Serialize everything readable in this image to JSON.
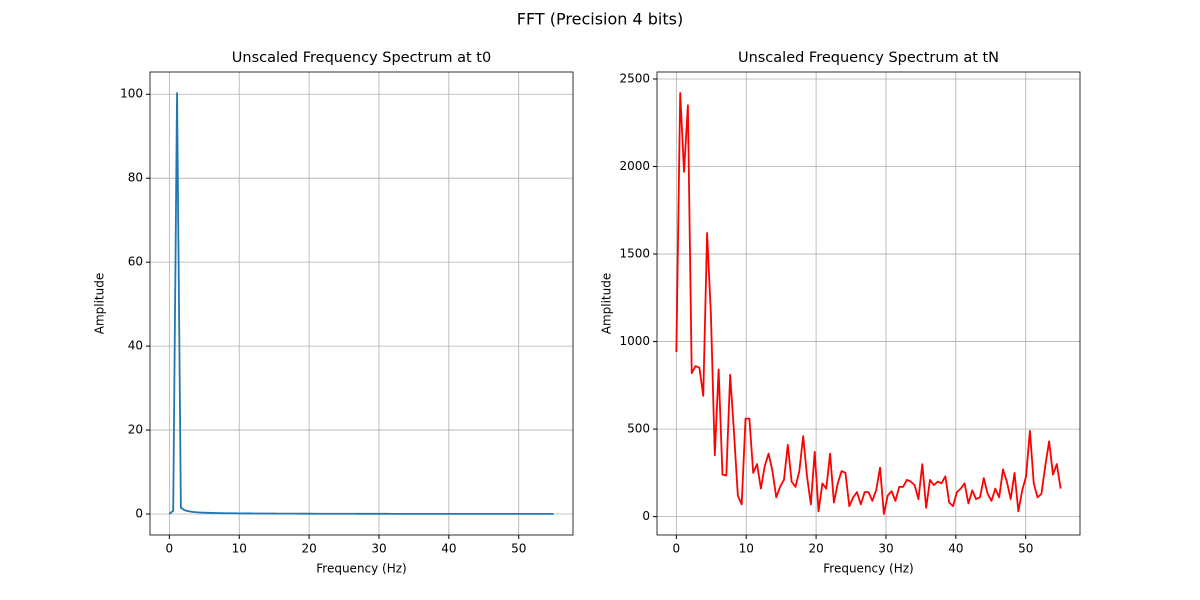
{
  "title": "FFT (Precision 4 bits)",
  "chart_data": [
    {
      "type": "line",
      "title": "Unscaled Frequency Spectrum at t0",
      "xlabel": "Frequency (Hz)",
      "ylabel": "Amplitude",
      "x": [
        0,
        0.55,
        1.1,
        1.65,
        2.2,
        2.75,
        3.3,
        3.85,
        4.4,
        4.95,
        5.5,
        6.05,
        6.6,
        7.15,
        7.7,
        8.25,
        8.8,
        9.35,
        9.9,
        10.45,
        11,
        11.55,
        12.1,
        12.65,
        13.2,
        13.75,
        14.3,
        14.85,
        15.4,
        15.95,
        16.5,
        17.05,
        17.6,
        18.15,
        18.7,
        19.25,
        19.8,
        20.35,
        20.9,
        21.45,
        22,
        22.55,
        23.1,
        23.65,
        24.2,
        24.75,
        25.3,
        25.85,
        26.4,
        26.95,
        27.5,
        28.05,
        28.6,
        29.15,
        29.7,
        30.25,
        30.8,
        31.35,
        31.9,
        32.45,
        33,
        33.55,
        34.1,
        34.65,
        35.2,
        35.75,
        36.3,
        36.85,
        37.4,
        37.95,
        38.5,
        39.05,
        39.6,
        40.15,
        40.7,
        41.25,
        41.8,
        42.35,
        42.9,
        43.45,
        44,
        44.55,
        45.1,
        45.65,
        46.2,
        46.75,
        47.3,
        47.85,
        48.4,
        48.95,
        49.5,
        50.05,
        50.6,
        51.15,
        51.7,
        52.25,
        52.8,
        53.35,
        53.9,
        54.45,
        55
      ],
      "series": [
        {
          "color": "#1f77b4",
          "values": [
            0,
            0.8,
            100.3,
            1.5,
            0.9,
            0.65,
            0.5,
            0.42,
            0.36,
            0.32,
            0.29,
            0.26,
            0.24,
            0.22,
            0.2,
            0.19,
            0.18,
            0.17,
            0.16,
            0.15,
            0.14,
            0.14,
            0.13,
            0.13,
            0.12,
            0.12,
            0.11,
            0.11,
            0.1,
            0.1,
            0.1,
            0.09,
            0.09,
            0.09,
            0.08,
            0.08,
            0.08,
            0.08,
            0.07,
            0.07,
            0.07,
            0.07,
            0.07,
            0.06,
            0.06,
            0.06,
            0.06,
            0.06,
            0.06,
            0.05,
            0.05,
            0.05,
            0.05,
            0.05,
            0.05,
            0.05,
            0.05,
            0.05,
            0.04,
            0.04,
            0.04,
            0.04,
            0.04,
            0.04,
            0.04,
            0.04,
            0.04,
            0.04,
            0.04,
            0.04,
            0.04,
            0.04,
            0.03,
            0.03,
            0.03,
            0.03,
            0.03,
            0.03,
            0.03,
            0.03,
            0.03,
            0.03,
            0.03,
            0.03,
            0.03,
            0.03,
            0.03,
            0.03,
            0.03,
            0.03,
            0.03,
            0.03,
            0.03,
            0.03,
            0.03,
            0.03,
            0.03,
            0.03,
            0.03,
            0.03,
            0.03
          ]
        }
      ],
      "xlim": [
        -2.77,
        57.77
      ],
      "ylim": [
        -5.0,
        105.3
      ],
      "xticks": [
        0,
        10,
        20,
        30,
        40,
        50
      ],
      "yticks": [
        0,
        20,
        40,
        60,
        80,
        100
      ],
      "grid": true
    },
    {
      "type": "line",
      "title": "Unscaled Frequency Spectrum at tN",
      "xlabel": "Frequency (Hz)",
      "ylabel": "Amplitude",
      "x": [
        0,
        0.55,
        1.1,
        1.65,
        2.2,
        2.75,
        3.3,
        3.85,
        4.4,
        4.95,
        5.5,
        6.05,
        6.6,
        7.15,
        7.7,
        8.25,
        8.8,
        9.35,
        9.9,
        10.45,
        11,
        11.55,
        12.1,
        12.65,
        13.2,
        13.75,
        14.3,
        14.85,
        15.4,
        15.95,
        16.5,
        17.05,
        17.6,
        18.15,
        18.7,
        19.25,
        19.8,
        20.35,
        20.9,
        21.45,
        22,
        22.55,
        23.1,
        23.65,
        24.2,
        24.75,
        25.3,
        25.85,
        26.4,
        26.95,
        27.5,
        28.05,
        28.6,
        29.15,
        29.7,
        30.25,
        30.8,
        31.35,
        31.9,
        32.45,
        33,
        33.55,
        34.1,
        34.65,
        35.2,
        35.75,
        36.3,
        36.85,
        37.4,
        37.95,
        38.5,
        39.05,
        39.6,
        40.15,
        40.7,
        41.25,
        41.8,
        42.35,
        42.9,
        43.45,
        44,
        44.55,
        45.1,
        45.65,
        46.2,
        46.75,
        47.3,
        47.85,
        48.4,
        48.95,
        49.5,
        50.05,
        50.6,
        51.15,
        51.7,
        52.25,
        52.8,
        53.35,
        53.9,
        54.45,
        55
      ],
      "series": [
        {
          "color": "#ff0000",
          "values": [
            940,
            2420,
            1970,
            2350,
            820,
            860,
            850,
            690,
            1620,
            1150,
            350,
            840,
            240,
            235,
            810,
            480,
            120,
            70,
            560,
            560,
            250,
            300,
            160,
            290,
            360,
            260,
            110,
            170,
            210,
            410,
            200,
            170,
            260,
            460,
            230,
            70,
            370,
            30,
            190,
            160,
            360,
            80,
            190,
            260,
            250,
            60,
            110,
            140,
            70,
            140,
            140,
            90,
            150,
            280,
            15,
            120,
            145,
            90,
            170,
            170,
            210,
            200,
            180,
            100,
            300,
            50,
            210,
            180,
            200,
            190,
            230,
            80,
            60,
            140,
            160,
            190,
            75,
            150,
            100,
            110,
            220,
            130,
            90,
            160,
            110,
            270,
            200,
            100,
            250,
            30,
            150,
            230,
            490,
            190,
            110,
            130,
            290,
            430,
            240,
            300,
            160
          ]
        }
      ],
      "xlim": [
        -2.77,
        57.77
      ],
      "ylim": [
        -105,
        2540
      ],
      "xticks": [
        0,
        10,
        20,
        30,
        40,
        50
      ],
      "yticks": [
        0,
        500,
        1000,
        1500,
        2000,
        2500
      ],
      "grid": true
    }
  ]
}
